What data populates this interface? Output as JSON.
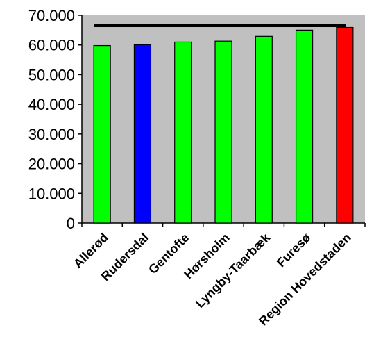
{
  "chart_data": {
    "type": "bar",
    "title": "",
    "xlabel": "",
    "ylabel": "",
    "ylim": [
      0,
      70000
    ],
    "yticks": [
      0,
      10000,
      20000,
      30000,
      40000,
      50000,
      60000,
      70000
    ],
    "ytick_labels": [
      "0",
      "10.000",
      "20.000",
      "30.000",
      "40.000",
      "50.000",
      "60.000",
      "70.000"
    ],
    "categories": [
      "Allerød",
      "Rudersdal",
      "Gentofte",
      "Hørsholm",
      "Lyngby-Taarbæk",
      "Furesø",
      "Region Hovedstaden"
    ],
    "values": [
      59800,
      60100,
      61000,
      61300,
      62900,
      65000,
      65900
    ],
    "bar_colors": [
      "#00ff00",
      "#0000ff",
      "#00ff00",
      "#00ff00",
      "#00ff00",
      "#00ff00",
      "#ff0000"
    ],
    "reference_line": {
      "value": 66500,
      "color": "#000000"
    },
    "plot_background": "#c0c0c0",
    "grid": false,
    "legend": "none"
  }
}
